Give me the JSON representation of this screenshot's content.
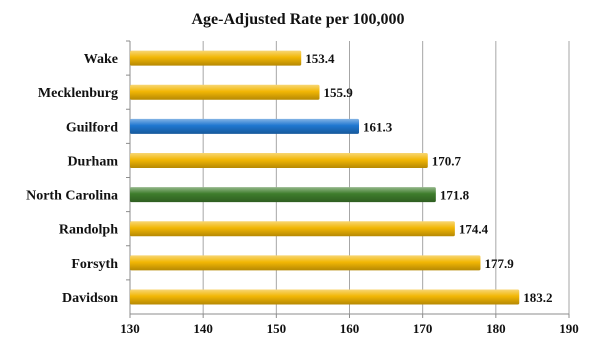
{
  "chart_data": {
    "type": "bar",
    "orientation": "horizontal",
    "title": "Age-Adjusted Rate per 100,000",
    "xlabel": "",
    "ylabel": "",
    "categories": [
      "Wake",
      "Mecklenburg",
      "Guilford",
      "Durham",
      "North Carolina",
      "Randolph",
      "Forsyth",
      "Davidson"
    ],
    "values": [
      153.4,
      155.9,
      161.3,
      170.7,
      171.8,
      174.4,
      177.9,
      183.2
    ],
    "value_labels": [
      "153.4",
      "155.9",
      "161.3",
      "170.7",
      "171.8",
      "174.4",
      "177.9",
      "183.2"
    ],
    "xlim": [
      130,
      190
    ],
    "ticks": [
      130,
      140,
      150,
      160,
      170,
      180,
      190
    ],
    "tick_labels": [
      "130",
      "140",
      "150",
      "160",
      "170",
      "180",
      "190"
    ],
    "grid": "vertical",
    "legend": "none",
    "colors": {
      "default": "#F2B705",
      "Guilford": "#1F77D0",
      "North Carolina": "#3E7D2C"
    }
  }
}
